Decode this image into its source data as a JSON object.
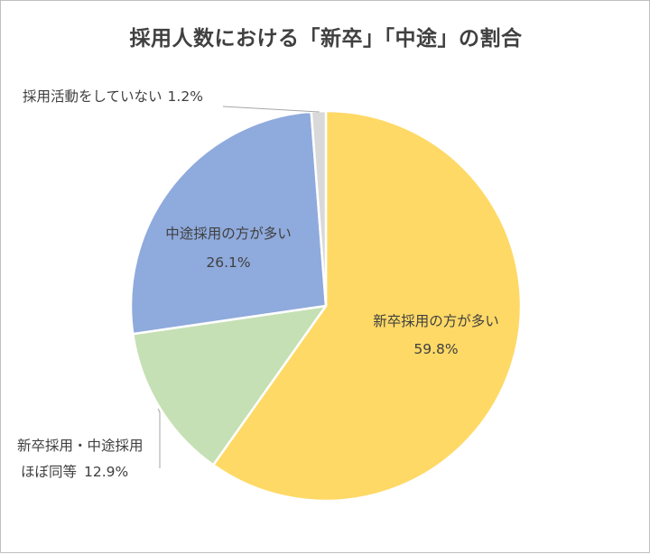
{
  "chart_data": {
    "type": "pie",
    "title": "採用人数における「新卒」「中途」の割合",
    "slices": [
      {
        "label": "新卒採用の方が多い",
        "value": 59.8,
        "value_label": "59.8%",
        "color": "#FFD966"
      },
      {
        "label": "新卒採用・中途採用ほぼ同等",
        "label_lines": [
          "新卒採用・中途採用",
          "ほぼ同等"
        ],
        "value": 12.9,
        "value_label": "12.9%",
        "color": "#C5E0B4"
      },
      {
        "label": "中途採用の方が多い",
        "value": 26.1,
        "value_label": "26.1%",
        "color": "#8FAADC"
      },
      {
        "label": "採用活動をしていない",
        "value": 1.2,
        "value_label": "1.2%",
        "color": "#D9D9D9"
      }
    ],
    "start_angle_deg": 0,
    "direction": "clockwise",
    "legend": "none"
  }
}
